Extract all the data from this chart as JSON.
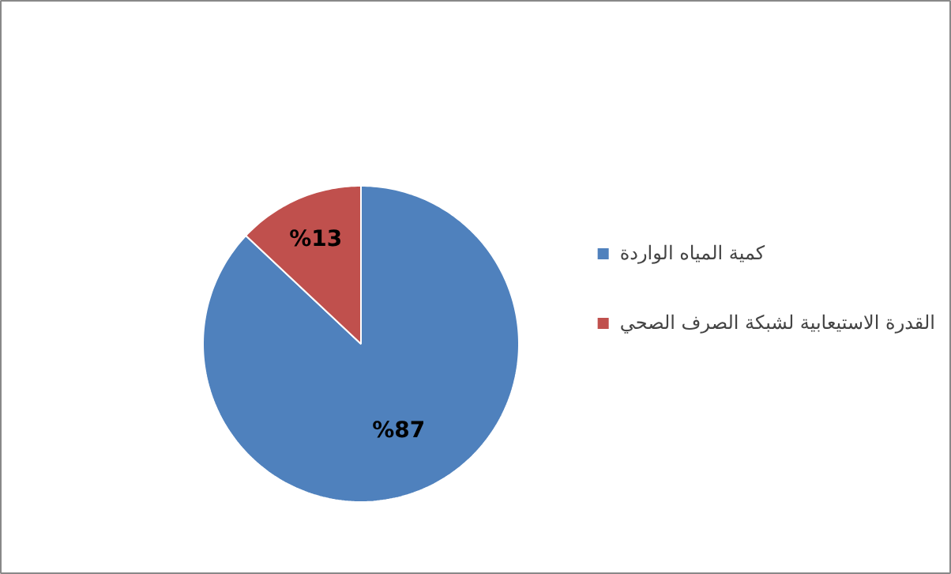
{
  "chart_data": {
    "type": "pie",
    "categories": [
      "كمية المياه الواردة",
      "القدرة الاستيعابية لشبكة الصرف الصحي"
    ],
    "values": [
      87,
      13
    ],
    "colors": [
      "#4f81bd",
      "#c0504d"
    ],
    "value_labels": [
      "%87",
      "%13"
    ],
    "legend": "right"
  }
}
